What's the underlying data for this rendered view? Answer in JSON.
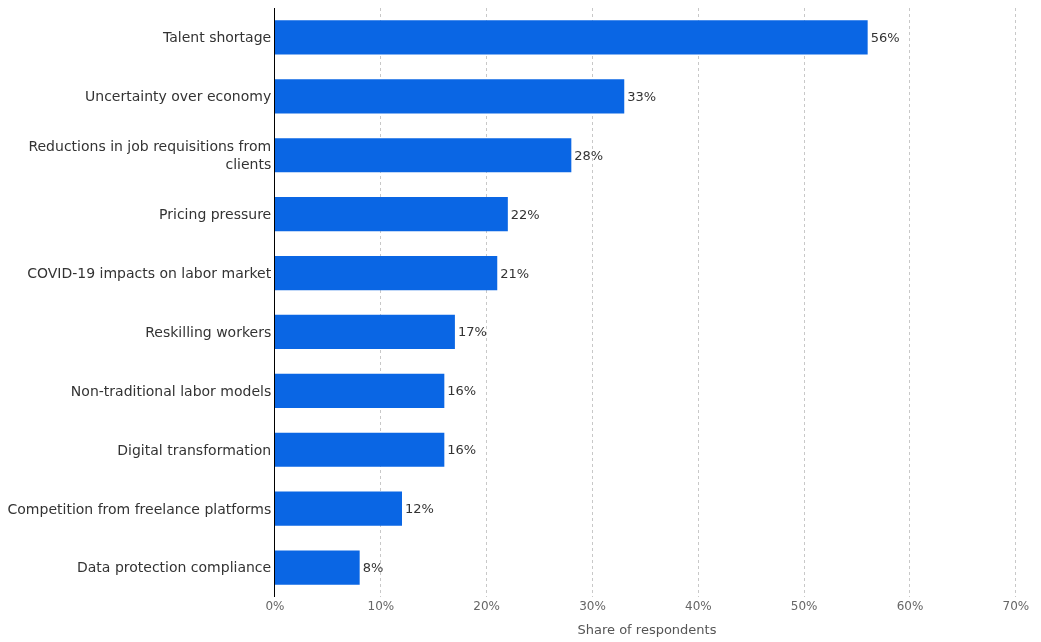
{
  "chart_data": {
    "type": "bar",
    "orientation": "horizontal",
    "xlabel": "Share of respondents",
    "categories": [
      "Talent shortage",
      "Uncertainty over economy",
      "Reductions in job requisitions from clients",
      "Pricing pressure",
      "COVID-19 impacts on labor market",
      "Reskilling workers",
      "Non-traditional labor models",
      "Digital transformation",
      "Competition from freelance platforms",
      "Data protection compliance"
    ],
    "values": [
      56,
      33,
      28,
      22,
      21,
      17,
      16,
      16,
      12,
      8
    ],
    "value_labels": [
      "56%",
      "33%",
      "28%",
      "22%",
      "21%",
      "17%",
      "16%",
      "16%",
      "12%",
      "8%"
    ],
    "color": "#0a66e4",
    "xlim": [
      0,
      70.3
    ],
    "xticks": [
      {
        "value": 0,
        "label": "0%"
      },
      {
        "value": 10,
        "label": "10%"
      },
      {
        "value": 20,
        "label": "20%"
      },
      {
        "value": 30,
        "label": "30%"
      },
      {
        "value": 40,
        "label": "40%"
      },
      {
        "value": 50,
        "label": "50%"
      },
      {
        "value": 60,
        "label": "60%"
      },
      {
        "value": 70,
        "label": "70%"
      }
    ],
    "grid": "x",
    "legend": false
  }
}
